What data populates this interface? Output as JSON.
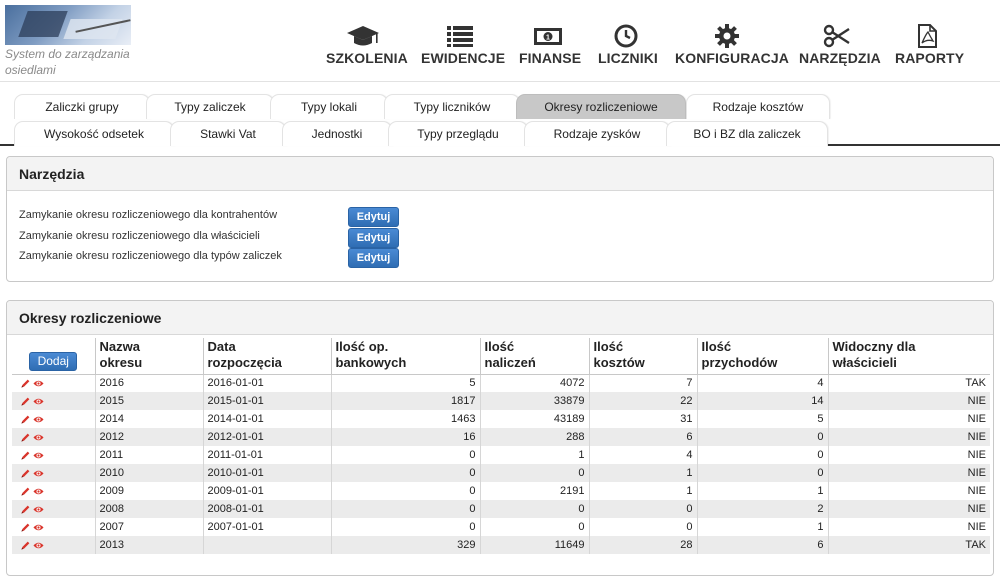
{
  "app": {
    "subtitle_line1": "System do zarządzania",
    "subtitle_line2": "osiedlami"
  },
  "menu": [
    {
      "label": "SZKOLENIA",
      "icon": "graduation-cap-icon"
    },
    {
      "label": "EWIDENCJE",
      "icon": "list-icon"
    },
    {
      "label": "FINANSE",
      "icon": "money-icon"
    },
    {
      "label": "LICZNIKI",
      "icon": "clock-icon"
    },
    {
      "label": "KONFIGURACJA",
      "icon": "gear-icon"
    },
    {
      "label": "NARZĘDZIA",
      "icon": "scissors-icon"
    },
    {
      "label": "RAPORTY",
      "icon": "pdf-file-icon"
    }
  ],
  "tabs_row1": [
    "Zaliczki grupy",
    "Typy zaliczek",
    "Typy lokali",
    "Typy liczników",
    "Okresy rozliczeniowe",
    "Rodzaje kosztów"
  ],
  "tabs_row2": [
    "Wysokość odsetek",
    "Stawki Vat",
    "Jednostki",
    "Typy przeglądu",
    "Rodzaje zysków",
    "BO i BZ dla zaliczek"
  ],
  "active_tab": "Okresy rozliczeniowe",
  "tools_panel": {
    "title": "Narzędzia",
    "rows": [
      {
        "label": "Zamykanie okresu rozliczeniowego dla kontrahentów",
        "button": "Edytuj"
      },
      {
        "label": "Zamykanie okresu rozliczeniowego dla właścicieli",
        "button": "Edytuj"
      },
      {
        "label": "Zamykanie okresu rozliczeniowego dla typów zaliczek",
        "button": "Edytuj"
      }
    ]
  },
  "periods_panel": {
    "title": "Okresy rozliczeniowe",
    "add_label": "Dodaj",
    "headers": [
      [
        "Nazwa",
        "okresu"
      ],
      [
        "Data",
        "rozpoczęcia"
      ],
      [
        "Ilość op.",
        "bankowych"
      ],
      [
        "Ilość",
        "naliczeń"
      ],
      [
        "Ilość",
        "kosztów"
      ],
      [
        "Ilość",
        "przychodów"
      ],
      [
        "Widoczny dla",
        "właścicieli"
      ]
    ],
    "rows": [
      [
        "2016",
        "2016-01-01",
        "5",
        "4072",
        "7",
        "4",
        "TAK"
      ],
      [
        "2015",
        "2015-01-01",
        "1817",
        "33879",
        "22",
        "14",
        "NIE"
      ],
      [
        "2014",
        "2014-01-01",
        "1463",
        "43189",
        "31",
        "5",
        "NIE"
      ],
      [
        "2012",
        "2012-01-01",
        "16",
        "288",
        "6",
        "0",
        "NIE"
      ],
      [
        "2011",
        "2011-01-01",
        "0",
        "1",
        "4",
        "0",
        "NIE"
      ],
      [
        "2010",
        "2010-01-01",
        "0",
        "0",
        "1",
        "0",
        "NIE"
      ],
      [
        "2009",
        "2009-01-01",
        "0",
        "2191",
        "1",
        "1",
        "NIE"
      ],
      [
        "2008",
        "2008-01-01",
        "0",
        "0",
        "0",
        "2",
        "NIE"
      ],
      [
        "2007",
        "2007-01-01",
        "0",
        "0",
        "0",
        "1",
        "NIE"
      ],
      [
        "2013",
        "",
        "329",
        "11649",
        "28",
        "6",
        "TAK"
      ]
    ]
  },
  "colors": {
    "accent_button": "#3a7cc7",
    "row_icon": "#d9342b",
    "active_tab": "#c8c8c8"
  }
}
